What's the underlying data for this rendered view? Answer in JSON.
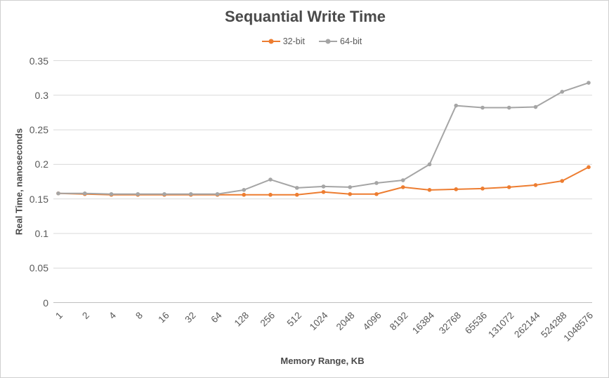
{
  "window": {
    "background": "#ffffff",
    "border_color": "#d0d0d0"
  },
  "chart_data": {
    "type": "line",
    "title": "Sequantial Write Time",
    "xlabel": "Memory Range, KB",
    "ylabel": "Real Time, nanoseconds",
    "legend_position": "top-center",
    "grid": "horizontal",
    "ylim": [
      0,
      0.35
    ],
    "ytick_step": 0.05,
    "yticks": [
      "0",
      "0.05",
      "0.1",
      "0.15",
      "0.2",
      "0.25",
      "0.3",
      "0.35"
    ],
    "categories": [
      "1",
      "2",
      "4",
      "8",
      "16",
      "32",
      "64",
      "128",
      "256",
      "512",
      "1024",
      "2048",
      "4096",
      "8192",
      "16384",
      "32768",
      "65536",
      "131072",
      "262144",
      "524288",
      "1048576"
    ],
    "series": [
      {
        "name": "32-bit",
        "color": "#ED7D31",
        "marker": "circle",
        "values": [
          0.158,
          0.157,
          0.156,
          0.156,
          0.156,
          0.156,
          0.156,
          0.156,
          0.156,
          0.156,
          0.16,
          0.157,
          0.157,
          0.167,
          0.163,
          0.164,
          0.165,
          0.167,
          0.17,
          0.176,
          0.196
        ]
      },
      {
        "name": "64-bit",
        "color": "#A5A5A5",
        "marker": "circle",
        "values": [
          0.158,
          0.158,
          0.157,
          0.157,
          0.157,
          0.157,
          0.157,
          0.163,
          0.178,
          0.166,
          0.168,
          0.167,
          0.173,
          0.177,
          0.2,
          0.285,
          0.282,
          0.282,
          0.283,
          0.305,
          0.318
        ]
      }
    ],
    "colors": {
      "gridline": "#d9d9d9",
      "zero_line": "#bfbfbf",
      "tick_text": "#595959",
      "title_text": "#4a4a4a"
    }
  }
}
